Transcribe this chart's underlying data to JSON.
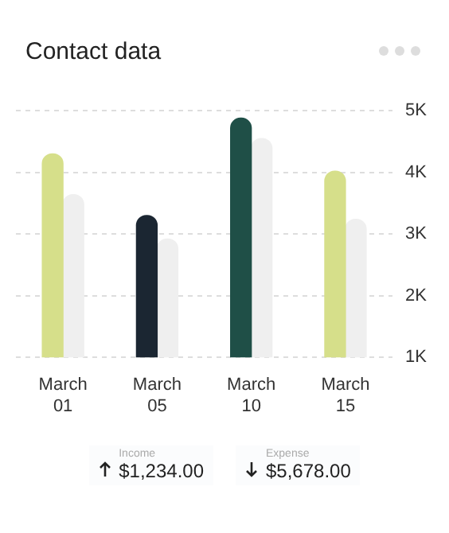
{
  "chart_data": {
    "type": "bar",
    "title": "Contact data",
    "categories": [
      "March 01",
      "March 05",
      "March 10",
      "March 15"
    ],
    "series": [
      {
        "colors": [
          "#d6df8a",
          "#1b2632",
          "#1f4f47",
          "#d6df8a"
        ],
        "values": [
          4300,
          3300,
          4880,
          4020
        ]
      },
      {
        "color": "#efefef",
        "values": [
          3640,
          2920,
          4550,
          3240
        ]
      }
    ],
    "ylim": [
      1000,
      5000
    ],
    "yticks": [
      {
        "value": 1000,
        "label": "1K"
      },
      {
        "value": 2000,
        "label": "2K"
      },
      {
        "value": 3000,
        "label": "3K"
      },
      {
        "value": 4000,
        "label": "4K"
      },
      {
        "value": 5000,
        "label": "5K"
      }
    ],
    "grid": "y",
    "annotations": [
      "Income",
      "$1,234.00",
      "Expense",
      "$5,678.00"
    ]
  }
}
